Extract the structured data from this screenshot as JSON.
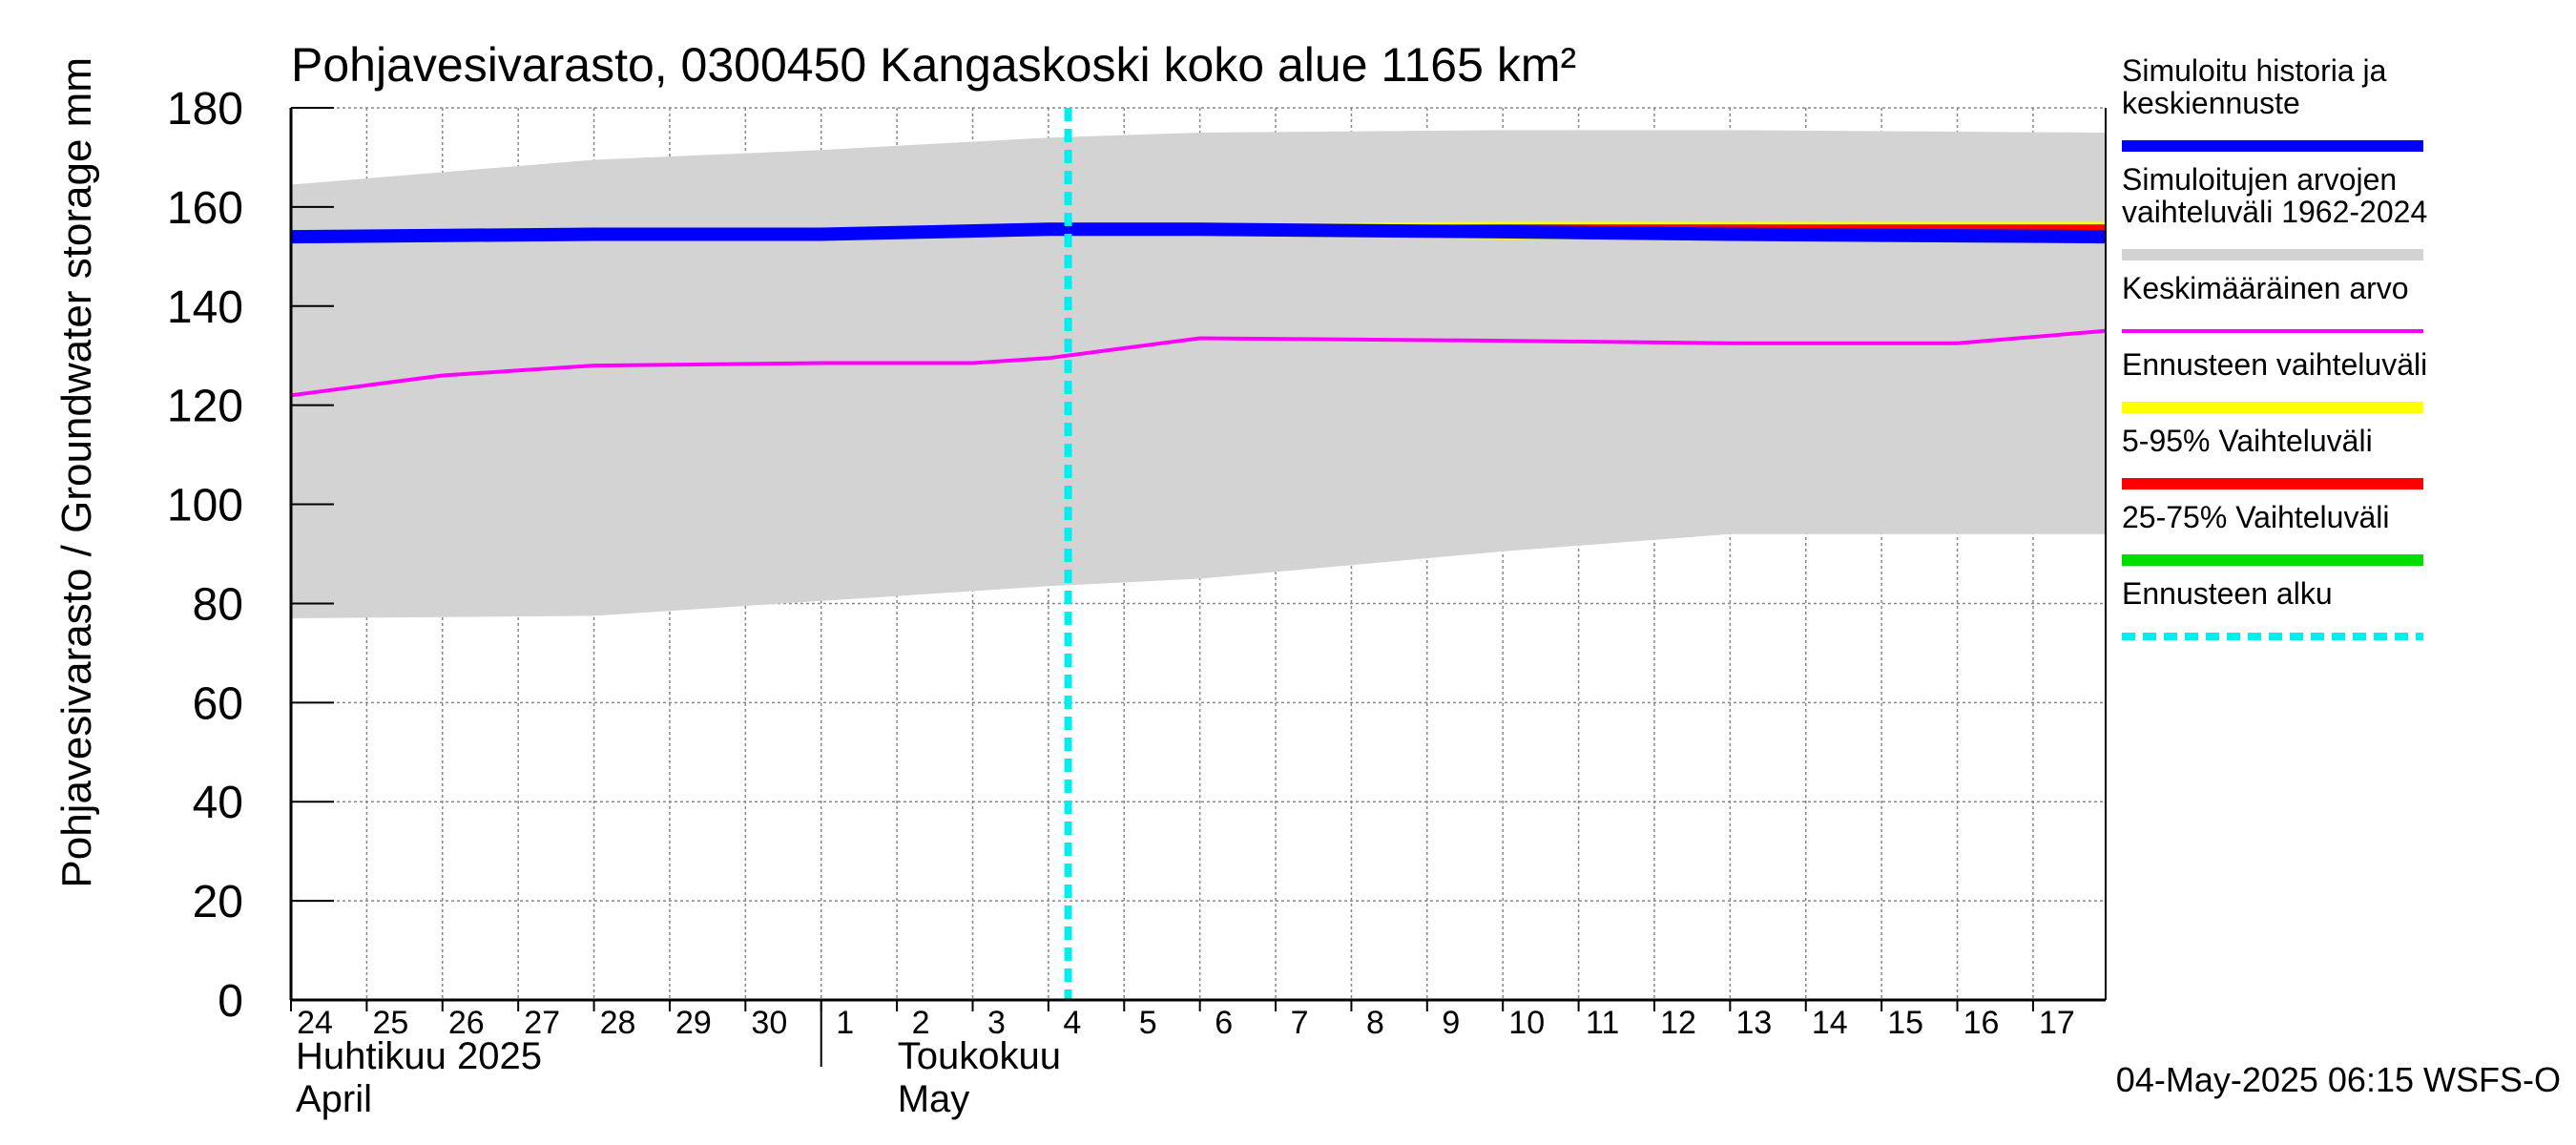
{
  "chart_data": {
    "type": "area",
    "title": "Pohjavesivarasto, 0300450 Kangaskoski koko alue 1165 km²",
    "ylabel": "Pohjavesivarasto / Groundwater storage   mm",
    "ylim": [
      0,
      180
    ],
    "yticks": [
      0,
      20,
      40,
      60,
      80,
      100,
      120,
      140,
      160,
      180
    ],
    "xlim": [
      "2025-04-24",
      "2025-05-17T23:00"
    ],
    "x_tick_labels": [
      "24",
      "25",
      "26",
      "27",
      "28",
      "29",
      "30",
      "1",
      "2",
      "3",
      "4",
      "5",
      "6",
      "7",
      "8",
      "9",
      "10",
      "11",
      "12",
      "13",
      "14",
      "15",
      "16",
      "17"
    ],
    "month_labels": [
      {
        "fi": "Huhtikuu  2025",
        "en": "April"
      },
      {
        "fi": "Toukokuu",
        "en": "May"
      }
    ],
    "grid": true,
    "legend_position": "right",
    "forecast_start": "2025-05-04T06:15",
    "series": [
      {
        "name": "Simuloitujen arvojen vaihteluväli 1962-2024",
        "kind": "band",
        "color": "#d3d3d3",
        "x": [
          "2025-04-24",
          "2025-04-28",
          "2025-05-01",
          "2025-05-04",
          "2025-05-06",
          "2025-05-10",
          "2025-05-13",
          "2025-05-17T23:00"
        ],
        "upper": [
          164.5,
          169.5,
          171.5,
          174,
          175,
          175.5,
          175.5,
          175
        ],
        "lower": [
          77,
          77.5,
          80.5,
          83.5,
          85,
          90.5,
          94,
          94
        ]
      },
      {
        "name": "Keskimääräinen arvo",
        "kind": "line",
        "color": "#ff00ff",
        "x": [
          "2025-04-24",
          "2025-04-25",
          "2025-04-26",
          "2025-04-27",
          "2025-04-28",
          "2025-05-01",
          "2025-05-03",
          "2025-05-04",
          "2025-05-06",
          "2025-05-10",
          "2025-05-13",
          "2025-05-16",
          "2025-05-17T23:00"
        ],
        "values": [
          122,
          124,
          126,
          127,
          128,
          128.5,
          128.5,
          129.5,
          133.5,
          133,
          132.5,
          132.5,
          135
        ]
      },
      {
        "name": "Ennusteen vaihteluväli",
        "kind": "forecast-band",
        "color": "#ffff00",
        "x": [
          "2025-05-04",
          "2025-05-10",
          "2025-05-17T23:00"
        ],
        "upper": [
          156.5,
          157,
          157
        ],
        "lower": [
          154.5,
          153.5,
          153
        ]
      },
      {
        "name": "5-95% Vaihteluväli",
        "kind": "forecast-band",
        "color": "#ff0000",
        "x": [
          "2025-05-04",
          "2025-05-10",
          "2025-05-17T23:00"
        ],
        "upper": [
          156,
          156.5,
          156.5
        ],
        "lower": [
          155,
          154,
          153.5
        ]
      },
      {
        "name": "25-75% Vaihteluväli",
        "kind": "forecast-band",
        "color": "#00dd00",
        "x": [
          "2025-05-04",
          "2025-05-10",
          "2025-05-17T23:00"
        ],
        "upper": [
          155.5,
          155.5,
          155
        ],
        "lower": [
          155,
          154.5,
          154
        ]
      },
      {
        "name": "Simuloitu historia ja keskiennuste",
        "kind": "line",
        "color": "#0000ff",
        "x": [
          "2025-04-24",
          "2025-04-28",
          "2025-05-01",
          "2025-05-04",
          "2025-05-06",
          "2025-05-10",
          "2025-05-13",
          "2025-05-17T23:00"
        ],
        "values": [
          154,
          154.5,
          154.5,
          155.5,
          155.5,
          155,
          154.5,
          154
        ]
      }
    ]
  },
  "legend": [
    {
      "label": "Simuloitu historia ja\nkeskiennuste",
      "color": "#0000ff",
      "style": "thick"
    },
    {
      "label": "Simuloitujen arvojen\nvaihteluväli 1962-2024",
      "color": "#d3d3d3",
      "style": "thick"
    },
    {
      "label": "Keskimääräinen arvo",
      "color": "#ff00ff",
      "style": "thin"
    },
    {
      "label": "Ennusteen vaihteluväli",
      "color": "#ffff00",
      "style": "thick"
    },
    {
      "label": "5-95% Vaihteluväli",
      "color": "#ff0000",
      "style": "thick"
    },
    {
      "label": "25-75% Vaihteluväli",
      "color": "#00dd00",
      "style": "thick"
    },
    {
      "label": "Ennusteen alku",
      "color": "#00eeee",
      "style": "dashed"
    }
  ],
  "footer": "04-May-2025 06:15 WSFS-O"
}
